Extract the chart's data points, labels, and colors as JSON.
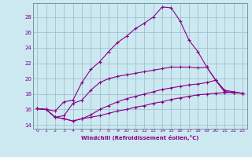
{
  "xlabel": "Windchill (Refroidissement éolien,°C)",
  "background_color": "#cce8f0",
  "line_color": "#880088",
  "grid_color": "#99bbcc",
  "xlim": [
    -0.5,
    23.5
  ],
  "ylim": [
    13.5,
    29.8
  ],
  "xticks": [
    0,
    1,
    2,
    3,
    4,
    5,
    6,
    7,
    8,
    9,
    10,
    11,
    12,
    13,
    14,
    15,
    16,
    17,
    18,
    19,
    20,
    21,
    22,
    23
  ],
  "yticks": [
    14,
    16,
    18,
    20,
    22,
    24,
    26,
    28
  ],
  "lines": [
    {
      "x": [
        0,
        1,
        2,
        3,
        4,
        5,
        6,
        7,
        8,
        9,
        10,
        11,
        12,
        13,
        14,
        15,
        16,
        17,
        18,
        19,
        20,
        21,
        22,
        23
      ],
      "y": [
        16.1,
        16.0,
        15.8,
        17.0,
        17.2,
        19.5,
        21.2,
        22.2,
        23.5,
        24.7,
        25.5,
        26.5,
        27.2,
        28.0,
        29.3,
        29.2,
        27.5,
        25.0,
        23.5,
        21.5,
        19.8,
        18.3,
        18.2,
        18.1
      ]
    },
    {
      "x": [
        0,
        1,
        2,
        3,
        4,
        5,
        6,
        7,
        8,
        9,
        10,
        11,
        12,
        13,
        14,
        15,
        16,
        17,
        18,
        19,
        20,
        21,
        22,
        23
      ],
      "y": [
        16.1,
        16.0,
        15.0,
        15.2,
        16.8,
        17.2,
        18.5,
        19.5,
        20.0,
        20.3,
        20.5,
        20.7,
        20.9,
        21.1,
        21.3,
        21.5,
        21.5,
        21.5,
        21.4,
        21.5,
        19.8,
        18.3,
        18.2,
        18.1
      ]
    },
    {
      "x": [
        0,
        1,
        2,
        3,
        4,
        5,
        6,
        7,
        8,
        9,
        10,
        11,
        12,
        13,
        14,
        15,
        16,
        17,
        18,
        19,
        20,
        21,
        22,
        23
      ],
      "y": [
        16.1,
        16.0,
        15.0,
        14.8,
        14.5,
        14.8,
        15.3,
        16.0,
        16.5,
        17.0,
        17.4,
        17.7,
        18.0,
        18.3,
        18.6,
        18.8,
        19.0,
        19.2,
        19.3,
        19.5,
        19.8,
        18.5,
        18.3,
        18.1
      ]
    },
    {
      "x": [
        0,
        1,
        2,
        3,
        4,
        5,
        6,
        7,
        8,
        9,
        10,
        11,
        12,
        13,
        14,
        15,
        16,
        17,
        18,
        19,
        20,
        21,
        22,
        23
      ],
      "y": [
        16.1,
        16.0,
        15.0,
        14.8,
        14.5,
        14.8,
        15.0,
        15.2,
        15.5,
        15.8,
        16.0,
        16.3,
        16.5,
        16.8,
        17.0,
        17.3,
        17.5,
        17.7,
        17.9,
        18.0,
        18.1,
        18.2,
        18.2,
        18.1
      ]
    }
  ]
}
